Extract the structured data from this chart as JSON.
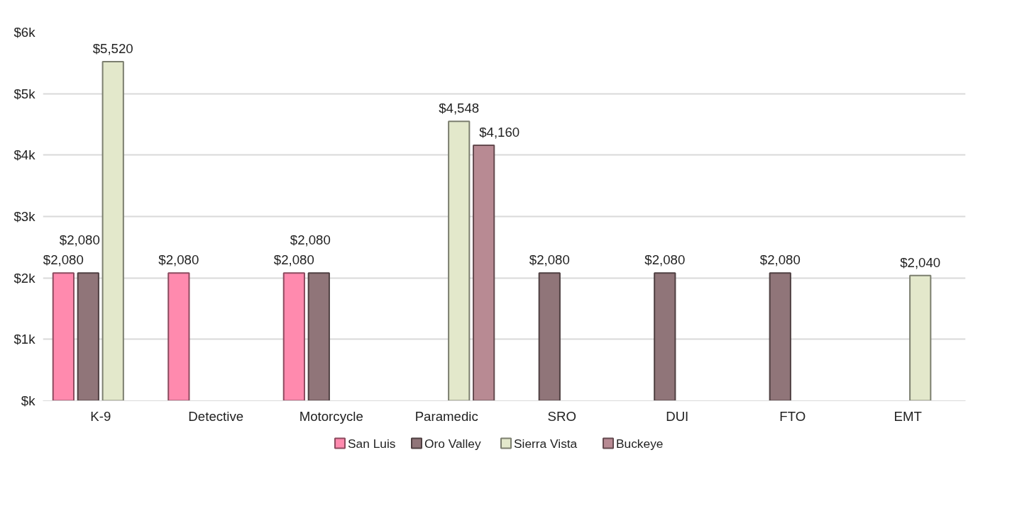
{
  "chart_data": {
    "type": "bar",
    "categories": [
      "K-9",
      "Detective",
      "Motorcycle",
      "Paramedic",
      "SRO",
      "DUI",
      "FTO",
      "EMT"
    ],
    "series": [
      {
        "name": "San Luis",
        "color": "#ff8aae",
        "values": [
          2080,
          2080,
          2080,
          null,
          null,
          null,
          null,
          null
        ],
        "value_labels": [
          "$2,080",
          "$2,080",
          "$2,080",
          null,
          null,
          null,
          null,
          null
        ]
      },
      {
        "name": "Oro Valley",
        "color": "#907579",
        "values": [
          2080,
          null,
          2080,
          null,
          2080,
          2080,
          2080,
          null
        ],
        "value_labels": [
          "$2,080",
          null,
          "$2,080",
          null,
          "$2,080",
          "$2,080",
          "$2,080",
          null
        ]
      },
      {
        "name": "Sierra Vista",
        "color": "#e3e8cb",
        "values": [
          5520,
          null,
          null,
          4548,
          null,
          null,
          null,
          2040
        ],
        "value_labels": [
          "$5,520",
          null,
          null,
          "$4,548",
          null,
          null,
          null,
          "$2,040"
        ]
      },
      {
        "name": "Buckeye",
        "color": "#b88a93",
        "values": [
          null,
          null,
          null,
          4160,
          null,
          null,
          null,
          null
        ],
        "value_labels": [
          null,
          null,
          null,
          "$4,160",
          null,
          null,
          null,
          null
        ]
      }
    ],
    "ylim": [
      0,
      6000
    ],
    "yticks": [
      {
        "value": 0,
        "label": "$k"
      },
      {
        "value": 1000,
        "label": "$1k"
      },
      {
        "value": 2000,
        "label": "$2k"
      },
      {
        "value": 3000,
        "label": "$3k"
      },
      {
        "value": 4000,
        "label": "$4k"
      },
      {
        "value": 5000,
        "label": "$5k"
      },
      {
        "value": 6000,
        "label": "$6k"
      }
    ],
    "grid": "y",
    "legend": "bottom"
  }
}
